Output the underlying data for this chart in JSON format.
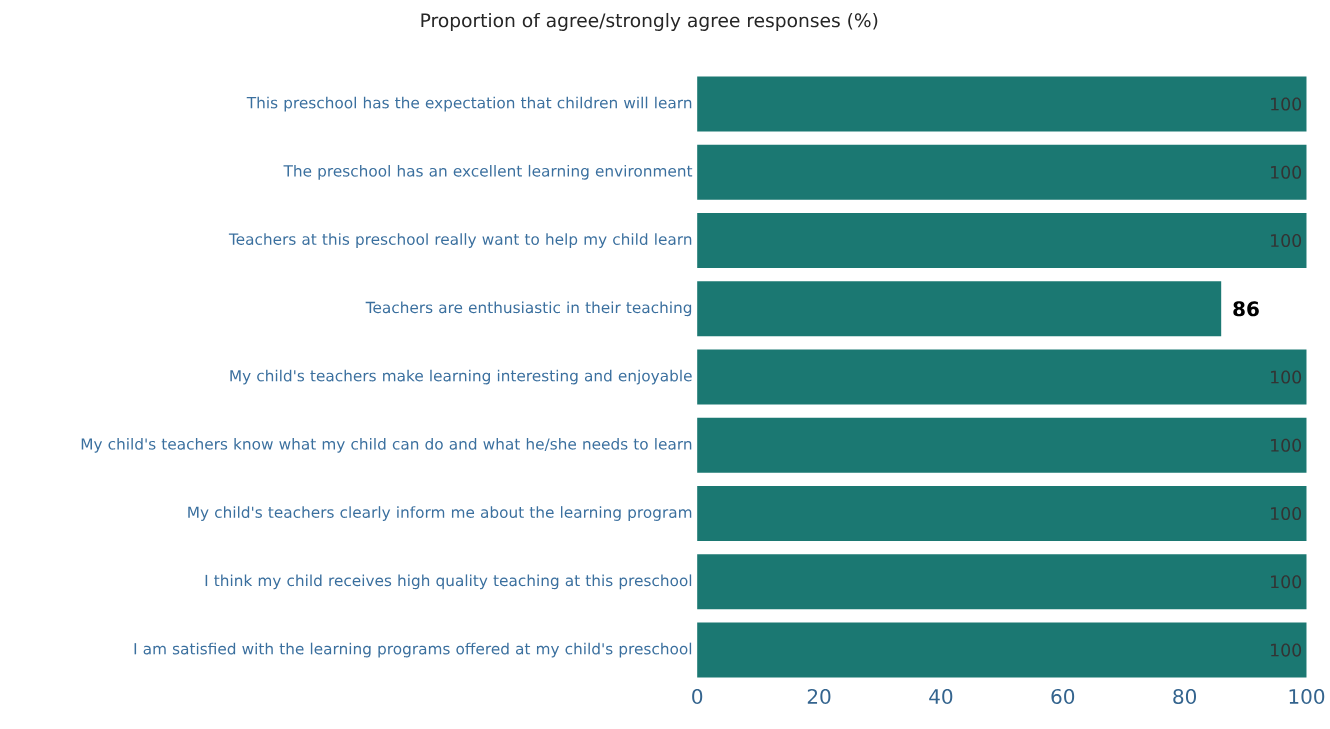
{
  "chart_data": {
    "type": "bar",
    "orientation": "horizontal",
    "title": "Proportion of agree/strongly agree responses (%)",
    "categories": [
      "This preschool has the expectation that children will learn",
      "The preschool has an excellent learning environment",
      "Teachers at this preschool really want to help my child learn",
      "Teachers are enthusiastic in their teaching",
      "My child's teachers make learning interesting and enjoyable",
      "My child's teachers know what my child can do and what he/she needs to learn",
      "My child's teachers clearly inform me about the learning program",
      "I think my child receives high quality teaching at this preschool",
      "I am satisfied with the learning programs offered at my child's preschool"
    ],
    "values": [
      100,
      100,
      100,
      86,
      100,
      100,
      100,
      100,
      100
    ],
    "color": "#1b7872",
    "xlim": [
      0,
      100
    ],
    "xticks": [
      0,
      20,
      40,
      60,
      80,
      100
    ],
    "data_labels": true,
    "grid": false
  }
}
